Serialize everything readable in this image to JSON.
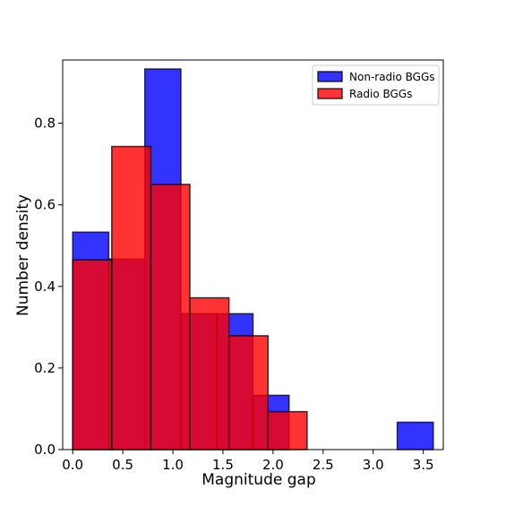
{
  "chart_data": {
    "type": "bar",
    "title": "",
    "xlabel": "Magnitude gap",
    "ylabel": "Number density",
    "xlim": [
      -0.1,
      3.7
    ],
    "ylim": [
      0,
      0.955
    ],
    "xticks": [
      "0.0",
      "0.5",
      "1.0",
      "1.5",
      "2.0",
      "2.5",
      "3.0",
      "3.5"
    ],
    "yticks": [
      "0.0",
      "0.2",
      "0.4",
      "0.6",
      "0.8"
    ],
    "legend_position": "top-right",
    "grid": false,
    "series": [
      {
        "name": "Non-radio BGGs",
        "color": "#0000ff",
        "bins": [
          [
            0.0,
            0.36,
            0.533
          ],
          [
            0.36,
            0.72,
            0.467
          ],
          [
            0.72,
            1.08,
            0.933
          ],
          [
            1.08,
            1.44,
            0.333
          ],
          [
            1.44,
            1.8,
            0.333
          ],
          [
            1.8,
            2.16,
            0.133
          ],
          [
            2.16,
            2.52,
            0.0
          ],
          [
            2.52,
            2.88,
            0.0
          ],
          [
            2.88,
            3.24,
            0.0
          ],
          [
            3.24,
            3.6,
            0.067
          ]
        ]
      },
      {
        "name": "Radio BGGs",
        "color": "#ff0000",
        "bins": [
          [
            0.0,
            0.39,
            0.465
          ],
          [
            0.39,
            0.78,
            0.743
          ],
          [
            0.78,
            1.17,
            0.65
          ],
          [
            1.17,
            1.56,
            0.372
          ],
          [
            1.56,
            1.95,
            0.279
          ],
          [
            1.95,
            2.34,
            0.093
          ]
        ]
      }
    ]
  }
}
